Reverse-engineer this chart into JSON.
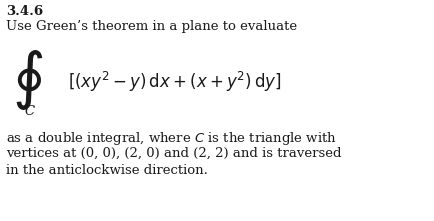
{
  "section": "3.4.6",
  "line1": "Use Green’s theorem in a plane to evaluate",
  "subscript_C": "C",
  "body_line1": "as a double integral, where $C$ is the triangle with",
  "body_line2": "vertices at (0, 0), (2, 0) and (2, 2) and is traversed",
  "body_line3": "in the anticlockwise direction.",
  "bg_color": "#ffffff",
  "text_color": "#1a1a1a",
  "font_size_section": 9.5,
  "font_size_body": 9.5,
  "font_size_integral": 12,
  "font_size_oint": 32
}
